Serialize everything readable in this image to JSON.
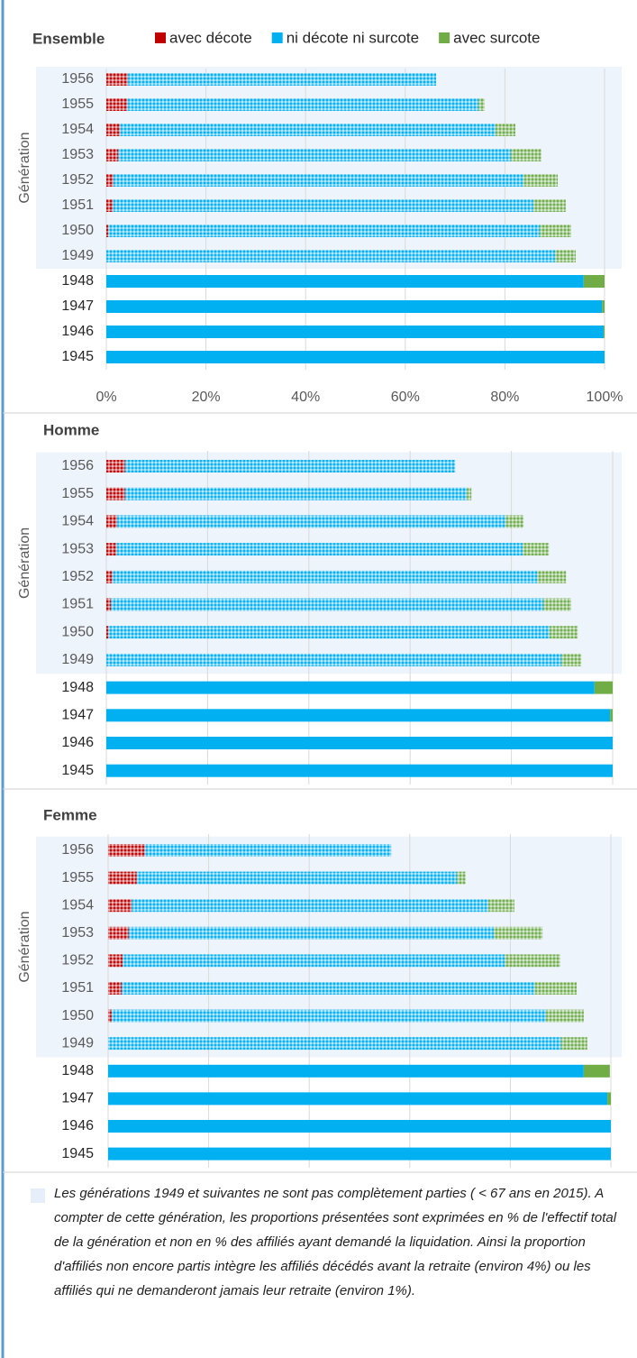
{
  "chart_data": [
    {
      "type": "bar",
      "orientation": "horizontal",
      "stacked": true,
      "title": "Ensemble",
      "y_label": "Génération",
      "categories": [
        "1956",
        "1955",
        "1954",
        "1953",
        "1952",
        "1951",
        "1950",
        "1949",
        "1948",
        "1947",
        "1946",
        "1945"
      ],
      "hatched": [
        true,
        true,
        true,
        true,
        true,
        true,
        true,
        true,
        false,
        false,
        false,
        false
      ],
      "series": [
        {
          "name": "avec décote",
          "color": "#c00000",
          "values": [
            4.3,
            4.2,
            2.7,
            2.4,
            1.4,
            1.3,
            0.4,
            0,
            0,
            0,
            0,
            0
          ]
        },
        {
          "name": "ni décote ni surcote",
          "color": "#00b0f0",
          "values": [
            61.9,
            70.5,
            75.4,
            78.8,
            82.3,
            84.4,
            86.6,
            90.1,
            95.8,
            99.5,
            99.8,
            100
          ]
        },
        {
          "name": "avec surcote",
          "color": "#70ad47",
          "values": [
            0,
            1.2,
            4.0,
            6.1,
            6.9,
            6.5,
            6.3,
            4.1,
            4.2,
            0.5,
            0.2,
            0
          ]
        }
      ],
      "xlim": [
        0,
        100
      ],
      "xticks": [
        {
          "value": 0,
          "label": "0%"
        },
        {
          "value": 20,
          "label": "20%"
        },
        {
          "value": 40,
          "label": "40%"
        },
        {
          "value": 60,
          "label": "60%"
        },
        {
          "value": 80,
          "label": "80%"
        },
        {
          "value": 100,
          "label": "100%"
        }
      ],
      "grid": true,
      "legend": "top"
    },
    {
      "type": "bar",
      "orientation": "horizontal",
      "stacked": true,
      "title": "Homme",
      "y_label": "Génération",
      "categories": [
        "1956",
        "1955",
        "1954",
        "1953",
        "1952",
        "1951",
        "1950",
        "1949",
        "1948",
        "1947",
        "1946",
        "1945"
      ],
      "hatched": [
        true,
        true,
        true,
        true,
        true,
        true,
        true,
        true,
        false,
        false,
        false,
        false
      ],
      "series": [
        {
          "color": "#c00000",
          "values": [
            3.7,
            3.7,
            2.1,
            2.0,
            1.2,
            0.9,
            0.4,
            0,
            0,
            0,
            0,
            0
          ]
        },
        {
          "color": "#00b0f0",
          "values": [
            65.2,
            67.5,
            76.7,
            80.2,
            83.9,
            85.4,
            87.1,
            89.9,
            96.4,
            99.5,
            100,
            100
          ]
        },
        {
          "color": "#70ad47",
          "values": [
            0,
            0.9,
            3.6,
            5.2,
            5.7,
            5.5,
            5.6,
            3.9,
            3.6,
            0.5,
            0,
            0
          ]
        }
      ],
      "xlim": [
        0,
        100
      ],
      "xticks": [
        0,
        20,
        40,
        60,
        80,
        100
      ],
      "tick_labels": false,
      "grid": true
    },
    {
      "type": "bar",
      "orientation": "horizontal",
      "stacked": true,
      "title": "Femme",
      "y_label": "Génération",
      "categories": [
        "1956",
        "1955",
        "1954",
        "1953",
        "1952",
        "1951",
        "1950",
        "1949",
        "1948",
        "1947",
        "1946",
        "1945"
      ],
      "hatched": [
        true,
        true,
        true,
        true,
        true,
        true,
        true,
        true,
        false,
        false,
        false,
        false
      ],
      "series": [
        {
          "color": "#c00000",
          "values": [
            7.3,
            5.7,
            4.7,
            4.1,
            2.9,
            2.7,
            0.7,
            0,
            0,
            0,
            0,
            0
          ]
        },
        {
          "color": "#00b0f0",
          "values": [
            49.0,
            63.7,
            70.9,
            72.6,
            76.0,
            82.1,
            86.4,
            90.1,
            94.6,
            99.3,
            100,
            100
          ]
        },
        {
          "color": "#70ad47",
          "values": [
            0,
            1.7,
            5.2,
            9.7,
            11.0,
            8.4,
            7.5,
            5.2,
            5.2,
            0.7,
            0,
            0
          ]
        }
      ],
      "xlim": [
        0,
        100
      ],
      "xticks": [
        0,
        20,
        40,
        60,
        80,
        100
      ],
      "tick_labels": false,
      "grid": true
    }
  ],
  "note": "Les générations 1949 et suivantes ne sont pas complètement parties ( < 67 ans en 2015). A compter de cette génération, les proportions présentées sont exprimées en % de l'effectif total de la génération et non en % des affiliés ayant demandé la liquidation. Ainsi la proportion d'affiliés non encore partis intègre les affiliés décédés avant la retraite (environ 4%) ou les affiliés qui ne demanderont jamais leur retraite (environ 1%)."
}
